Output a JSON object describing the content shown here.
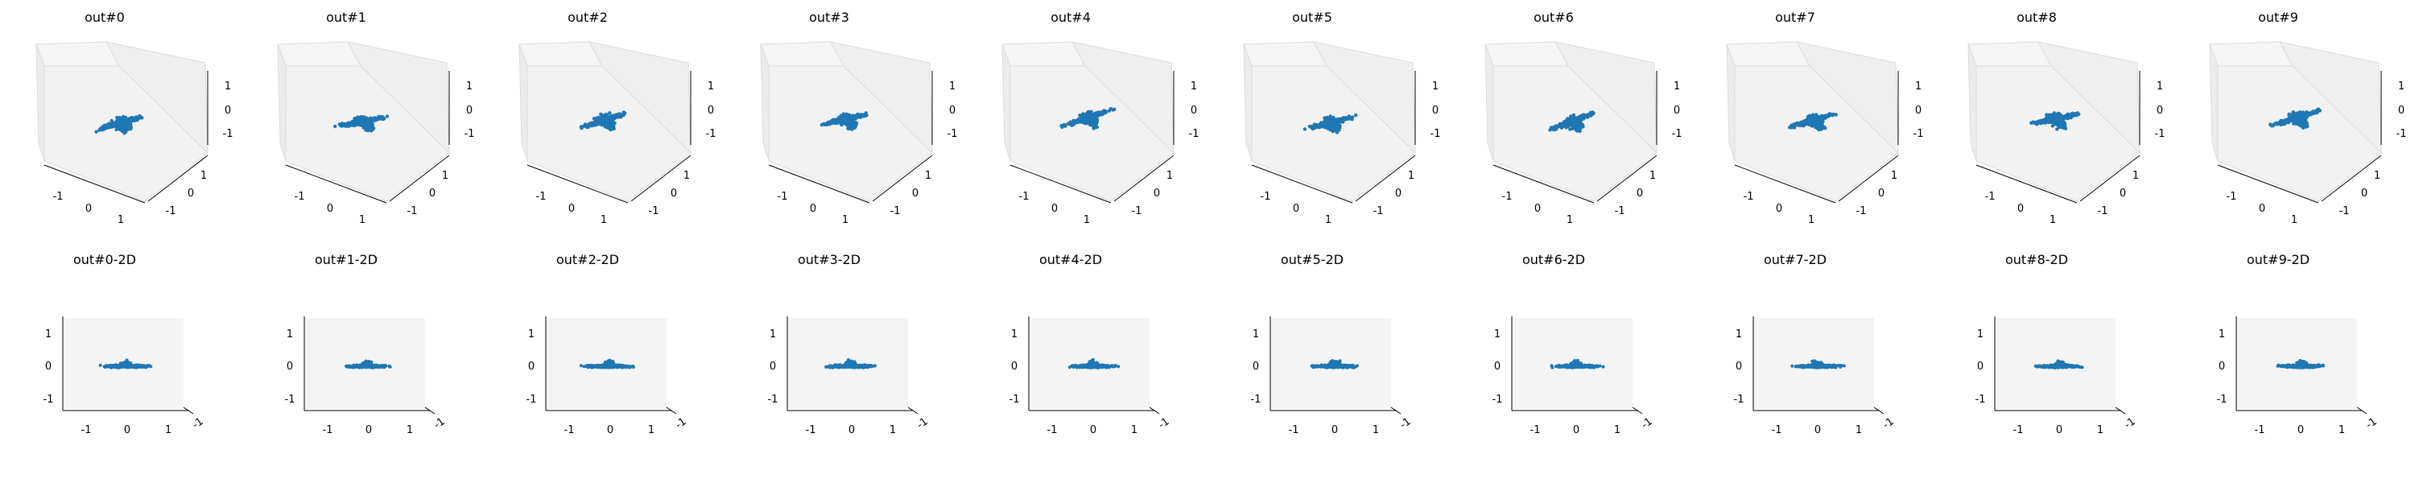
{
  "figure": {
    "point_color": "#1f77b4",
    "pane_color": "#f2f2f2",
    "axis_color": "#000000"
  },
  "chart_data": [
    {
      "type": "scatter",
      "projection": "3d",
      "title": "out#0",
      "xlim": [
        -1.5,
        1.5
      ],
      "ylim": [
        -1.5,
        1.5
      ],
      "zlim": [
        -1.5,
        1.5
      ],
      "x_ticks": [
        "-1",
        "0",
        "1"
      ],
      "y_ticks": [
        "-1",
        "0",
        "1"
      ],
      "z_ticks": [
        "-1",
        "0",
        "1"
      ],
      "grid": true
    },
    {
      "type": "scatter",
      "projection": "3d",
      "title": "out#1",
      "xlim": [
        -1.5,
        1.5
      ],
      "ylim": [
        -1.5,
        1.5
      ],
      "zlim": [
        -1.5,
        1.5
      ],
      "x_ticks": [
        "-1",
        "0",
        "1"
      ],
      "y_ticks": [
        "-1",
        "0",
        "1"
      ],
      "z_ticks": [
        "-1",
        "0",
        "1"
      ],
      "grid": true
    },
    {
      "type": "scatter",
      "projection": "3d",
      "title": "out#2",
      "xlim": [
        -1.5,
        1.5
      ],
      "ylim": [
        -1.5,
        1.5
      ],
      "zlim": [
        -1.5,
        1.5
      ],
      "x_ticks": [
        "-1",
        "0",
        "1"
      ],
      "y_ticks": [
        "-1",
        "0",
        "1"
      ],
      "z_ticks": [
        "-1",
        "0",
        "1"
      ],
      "grid": true
    },
    {
      "type": "scatter",
      "projection": "3d",
      "title": "out#3",
      "xlim": [
        -1.5,
        1.5
      ],
      "ylim": [
        -1.5,
        1.5
      ],
      "zlim": [
        -1.5,
        1.5
      ],
      "x_ticks": [
        "-1",
        "0",
        "1"
      ],
      "y_ticks": [
        "-1",
        "0",
        "1"
      ],
      "z_ticks": [
        "-1",
        "0",
        "1"
      ],
      "grid": true
    },
    {
      "type": "scatter",
      "projection": "3d",
      "title": "out#4",
      "xlim": [
        -1.5,
        1.5
      ],
      "ylim": [
        -1.5,
        1.5
      ],
      "zlim": [
        -1.5,
        1.5
      ],
      "x_ticks": [
        "-1",
        "0",
        "1"
      ],
      "y_ticks": [
        "-1",
        "0",
        "1"
      ],
      "z_ticks": [
        "-1",
        "0",
        "1"
      ],
      "grid": true
    },
    {
      "type": "scatter",
      "projection": "3d",
      "title": "out#5",
      "xlim": [
        -1.5,
        1.5
      ],
      "ylim": [
        -1.5,
        1.5
      ],
      "zlim": [
        -1.5,
        1.5
      ],
      "x_ticks": [
        "-1",
        "0",
        "1"
      ],
      "y_ticks": [
        "-1",
        "0",
        "1"
      ],
      "z_ticks": [
        "-1",
        "0",
        "1"
      ],
      "grid": true
    },
    {
      "type": "scatter",
      "projection": "3d",
      "title": "out#6",
      "xlim": [
        -1.5,
        1.5
      ],
      "ylim": [
        -1.5,
        1.5
      ],
      "zlim": [
        -1.5,
        1.5
      ],
      "x_ticks": [
        "-1",
        "0",
        "1"
      ],
      "y_ticks": [
        "-1",
        "0",
        "1"
      ],
      "z_ticks": [
        "-1",
        "0",
        "1"
      ],
      "grid": true
    },
    {
      "type": "scatter",
      "projection": "3d",
      "title": "out#7",
      "xlim": [
        -1.5,
        1.5
      ],
      "ylim": [
        -1.5,
        1.5
      ],
      "zlim": [
        -1.5,
        1.5
      ],
      "x_ticks": [
        "-1",
        "0",
        "1"
      ],
      "y_ticks": [
        "-1",
        "0",
        "1"
      ],
      "z_ticks": [
        "-1",
        "0",
        "1"
      ],
      "grid": true
    },
    {
      "type": "scatter",
      "projection": "3d",
      "title": "out#8",
      "xlim": [
        -1.5,
        1.5
      ],
      "ylim": [
        -1.5,
        1.5
      ],
      "zlim": [
        -1.5,
        1.5
      ],
      "x_ticks": [
        "-1",
        "0",
        "1"
      ],
      "y_ticks": [
        "-1",
        "0",
        "1"
      ],
      "z_ticks": [
        "-1",
        "0",
        "1"
      ],
      "grid": true
    },
    {
      "type": "scatter",
      "projection": "3d",
      "title": "out#9",
      "xlim": [
        -1.5,
        1.5
      ],
      "ylim": [
        -1.5,
        1.5
      ],
      "zlim": [
        -1.5,
        1.5
      ],
      "x_ticks": [
        "-1",
        "0",
        "1"
      ],
      "y_ticks": [
        "-1",
        "0",
        "1"
      ],
      "z_ticks": [
        "-1",
        "0",
        "1"
      ],
      "grid": true
    },
    {
      "type": "scatter",
      "projection": "2d-view",
      "title": "out#0-2D",
      "xlim": [
        -1.5,
        1.5
      ],
      "ylim": [
        -1.5,
        1.5
      ],
      "x_ticks": [
        "-1",
        "0",
        "1"
      ],
      "y_ticks": [
        "-1",
        "0",
        "1"
      ],
      "depth_tick": "-1"
    },
    {
      "type": "scatter",
      "projection": "2d-view",
      "title": "out#1-2D",
      "xlim": [
        -1.5,
        1.5
      ],
      "ylim": [
        -1.5,
        1.5
      ],
      "x_ticks": [
        "-1",
        "0",
        "1"
      ],
      "y_ticks": [
        "-1",
        "0",
        "1"
      ],
      "depth_tick": "-1"
    },
    {
      "type": "scatter",
      "projection": "2d-view",
      "title": "out#2-2D",
      "xlim": [
        -1.5,
        1.5
      ],
      "ylim": [
        -1.5,
        1.5
      ],
      "x_ticks": [
        "-1",
        "0",
        "1"
      ],
      "y_ticks": [
        "-1",
        "0",
        "1"
      ],
      "depth_tick": "-1"
    },
    {
      "type": "scatter",
      "projection": "2d-view",
      "title": "out#3-2D",
      "xlim": [
        -1.5,
        1.5
      ],
      "ylim": [
        -1.5,
        1.5
      ],
      "x_ticks": [
        "-1",
        "0",
        "1"
      ],
      "y_ticks": [
        "-1",
        "0",
        "1"
      ],
      "depth_tick": "-1"
    },
    {
      "type": "scatter",
      "projection": "2d-view",
      "title": "out#4-2D",
      "xlim": [
        -1.5,
        1.5
      ],
      "ylim": [
        -1.5,
        1.5
      ],
      "x_ticks": [
        "-1",
        "0",
        "1"
      ],
      "y_ticks": [
        "-1",
        "0",
        "1"
      ],
      "depth_tick": "-1"
    },
    {
      "type": "scatter",
      "projection": "2d-view",
      "title": "out#5-2D",
      "xlim": [
        -1.5,
        1.5
      ],
      "ylim": [
        -1.5,
        1.5
      ],
      "x_ticks": [
        "-1",
        "0",
        "1"
      ],
      "y_ticks": [
        "-1",
        "0",
        "1"
      ],
      "depth_tick": "-1"
    },
    {
      "type": "scatter",
      "projection": "2d-view",
      "title": "out#6-2D",
      "xlim": [
        -1.5,
        1.5
      ],
      "ylim": [
        -1.5,
        1.5
      ],
      "x_ticks": [
        "-1",
        "0",
        "1"
      ],
      "y_ticks": [
        "-1",
        "0",
        "1"
      ],
      "depth_tick": "-1"
    },
    {
      "type": "scatter",
      "projection": "2d-view",
      "title": "out#7-2D",
      "xlim": [
        -1.5,
        1.5
      ],
      "ylim": [
        -1.5,
        1.5
      ],
      "x_ticks": [
        "-1",
        "0",
        "1"
      ],
      "y_ticks": [
        "-1",
        "0",
        "1"
      ],
      "depth_tick": "-1"
    },
    {
      "type": "scatter",
      "projection": "2d-view",
      "title": "out#8-2D",
      "xlim": [
        -1.5,
        1.5
      ],
      "ylim": [
        -1.5,
        1.5
      ],
      "x_ticks": [
        "-1",
        "0",
        "1"
      ],
      "y_ticks": [
        "-1",
        "0",
        "1"
      ],
      "depth_tick": "-1"
    },
    {
      "type": "scatter",
      "projection": "2d-view",
      "title": "out#9-2D",
      "xlim": [
        -1.5,
        1.5
      ],
      "ylim": [
        -1.5,
        1.5
      ],
      "x_ticks": [
        "-1",
        "0",
        "1"
      ],
      "y_ticks": [
        "-1",
        "0",
        "1"
      ],
      "depth_tick": "-1"
    }
  ]
}
